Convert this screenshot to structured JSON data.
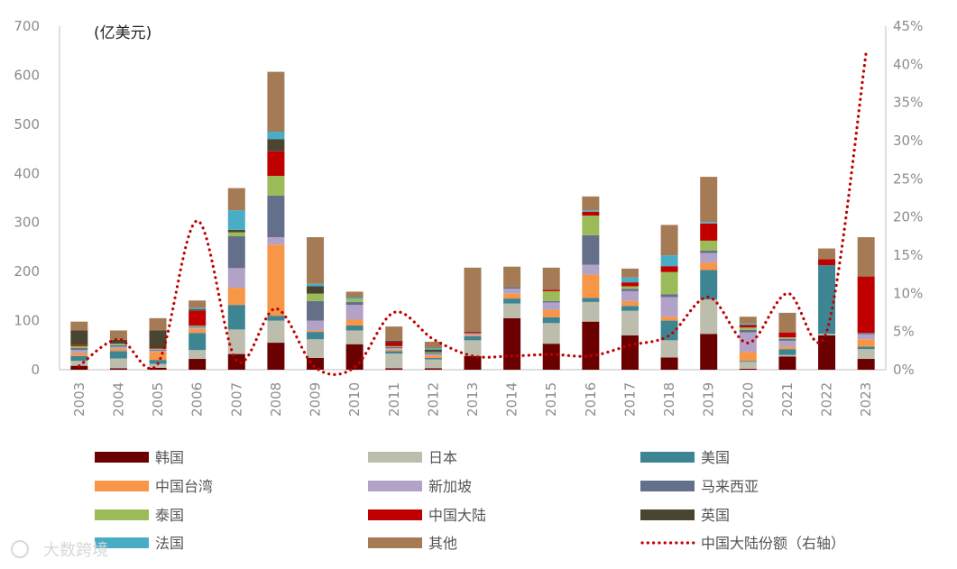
{
  "chart_data": {
    "type": "bar",
    "stacked": true,
    "unit_label": "(亿美元)",
    "categories": [
      "2003",
      "2004",
      "2005",
      "2006",
      "2007",
      "2008",
      "2009",
      "2010",
      "2011",
      "2012",
      "2013",
      "2014",
      "2015",
      "2016",
      "2017",
      "2018",
      "2019",
      "2020",
      "2021",
      "2022",
      "2023"
    ],
    "ylim": [
      0,
      700
    ],
    "yticks": [
      0,
      100,
      200,
      300,
      400,
      500,
      600,
      700
    ],
    "y2lim": [
      0,
      45
    ],
    "y2ticks": [
      0,
      5,
      10,
      15,
      20,
      25,
      30,
      35,
      40,
      45
    ],
    "y2_suffix": "%",
    "series": [
      {
        "name": "韩国",
        "color": "#6b0000",
        "values": [
          8,
          3,
          4,
          22,
          32,
          55,
          24,
          52,
          3,
          3,
          28,
          105,
          53,
          98,
          70,
          25,
          73,
          2,
          27,
          70,
          22
        ]
      },
      {
        "name": "日本",
        "color": "#bdbdad",
        "values": [
          10,
          20,
          8,
          18,
          50,
          45,
          38,
          28,
          30,
          18,
          32,
          30,
          42,
          40,
          50,
          35,
          70,
          14,
          3,
          3,
          20
        ]
      },
      {
        "name": "美国",
        "color": "#3d8593",
        "values": [
          10,
          15,
          8,
          35,
          50,
          10,
          15,
          10,
          5,
          3,
          8,
          10,
          12,
          8,
          10,
          40,
          60,
          2,
          12,
          140,
          5
        ]
      },
      {
        "name": "中国台湾",
        "color": "#f79646",
        "values": [
          6,
          5,
          16,
          8,
          35,
          145,
          3,
          12,
          3,
          5,
          3,
          10,
          15,
          48,
          10,
          8,
          15,
          18,
          5,
          0,
          15
        ]
      },
      {
        "name": "新加坡",
        "color": "#b3a2c7",
        "values": [
          6,
          4,
          3,
          3,
          40,
          15,
          20,
          30,
          3,
          3,
          2,
          10,
          15,
          20,
          20,
          40,
          20,
          40,
          12,
          0,
          10
        ]
      },
      {
        "name": "马来西亚",
        "color": "#64708a",
        "values": [
          4,
          3,
          2,
          2,
          65,
          85,
          40,
          6,
          2,
          2,
          2,
          3,
          3,
          60,
          5,
          6,
          5,
          5,
          4,
          0,
          3
        ]
      },
      {
        "name": "泰国",
        "color": "#9bbb59",
        "values": [
          4,
          3,
          2,
          2,
          8,
          40,
          15,
          6,
          2,
          2,
          0,
          0,
          20,
          40,
          5,
          45,
          20,
          5,
          3,
          0,
          0
        ]
      },
      {
        "name": "中国大陆",
        "color": "#c00000",
        "values": [
          2,
          0,
          2,
          30,
          0,
          50,
          0,
          0,
          8,
          0,
          2,
          0,
          3,
          8,
          8,
          12,
          35,
          5,
          10,
          12,
          115
        ]
      },
      {
        "name": "英国",
        "color": "#4a4530",
        "values": [
          30,
          8,
          35,
          3,
          5,
          25,
          15,
          0,
          3,
          5,
          0,
          0,
          0,
          0,
          0,
          0,
          0,
          0,
          0,
          0,
          0
        ]
      },
      {
        "name": "法国",
        "color": "#4bacc6",
        "values": [
          0,
          0,
          0,
          3,
          40,
          15,
          5,
          3,
          0,
          3,
          0,
          0,
          0,
          3,
          10,
          22,
          3,
          3,
          0,
          0,
          0
        ]
      },
      {
        "name": "其他",
        "color": "#a57b56",
        "values": [
          18,
          19,
          25,
          15,
          45,
          122,
          95,
          12,
          29,
          13,
          131,
          42,
          45,
          28,
          18,
          62,
          92,
          14,
          40,
          22,
          80
        ]
      }
    ],
    "line": {
      "name": "中国大陆份额（右轴）",
      "color": "#c00000",
      "axis": "right",
      "values": [
        0.5,
        4.0,
        0.8,
        19.5,
        1.2,
        8.0,
        0.3,
        0.3,
        7.5,
        4.0,
        1.8,
        1.8,
        2.0,
        1.8,
        3.2,
        4.5,
        9.5,
        3.5,
        10.0,
        5.0,
        41.5
      ]
    },
    "title": "",
    "xlabel": "",
    "ylabel": "",
    "legend_position": "bottom"
  },
  "watermark": "大数跨境"
}
